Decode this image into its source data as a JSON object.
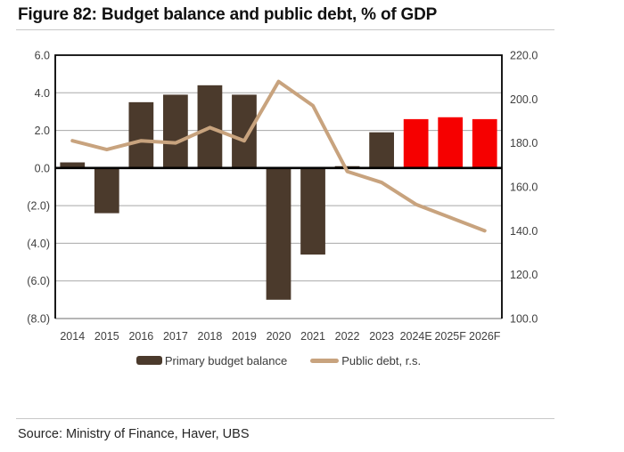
{
  "figure": {
    "title": "Figure 82: Budget balance and public debt, % of GDP",
    "source": "Source: Ministry of Finance, Haver, UBS"
  },
  "colors": {
    "bar_historical": "#4b3a2c",
    "bar_forecast": "#f60000",
    "debt_line": "#c8a37e",
    "axis_text": "#404040",
    "gridline": "#a8a8a8",
    "bottom_border": "#8a8a8a",
    "frame": "#000000",
    "zero_line": "#000000",
    "rule": "#c8c8c8"
  },
  "chart_data": {
    "type": "combo-bar-line",
    "title": "Figure 82: Budget balance and public debt, % of GDP",
    "categories": [
      "2014",
      "2015",
      "2016",
      "2017",
      "2018",
      "2019",
      "2020",
      "2021",
      "2022",
      "2023",
      "2024E",
      "2025F",
      "2026F"
    ],
    "series": [
      {
        "name": "Primary budget balance",
        "type": "bar",
        "axis": "left",
        "values": [
          0.3,
          -2.4,
          3.5,
          3.9,
          4.4,
          3.9,
          -7.0,
          -4.6,
          0.1,
          1.9,
          2.6,
          2.7,
          2.6
        ],
        "forecast_from_index": 10
      },
      {
        "name": "Public debt, r.s.",
        "type": "line",
        "axis": "right",
        "values": [
          181,
          177,
          181,
          180,
          187,
          181,
          208,
          197,
          167,
          162,
          152,
          146,
          140
        ]
      }
    ],
    "left_axis": {
      "min": -8,
      "max": 6,
      "tick_labels": [
        "6.0",
        "4.0",
        "2.0",
        "0.0",
        "(2.0)",
        "(4.0)",
        "(6.0)",
        "(8.0)"
      ],
      "tick_values": [
        6,
        4,
        2,
        0,
        -2,
        -4,
        -6,
        -8
      ]
    },
    "right_axis": {
      "min": 100,
      "max": 220,
      "tick_labels": [
        "220.0",
        "200.0",
        "180.0",
        "160.0",
        "140.0",
        "120.0",
        "100.0"
      ],
      "tick_values": [
        220,
        200,
        180,
        160,
        140,
        120,
        100
      ]
    },
    "grid": "horizontal",
    "legend_position": "bottom"
  }
}
